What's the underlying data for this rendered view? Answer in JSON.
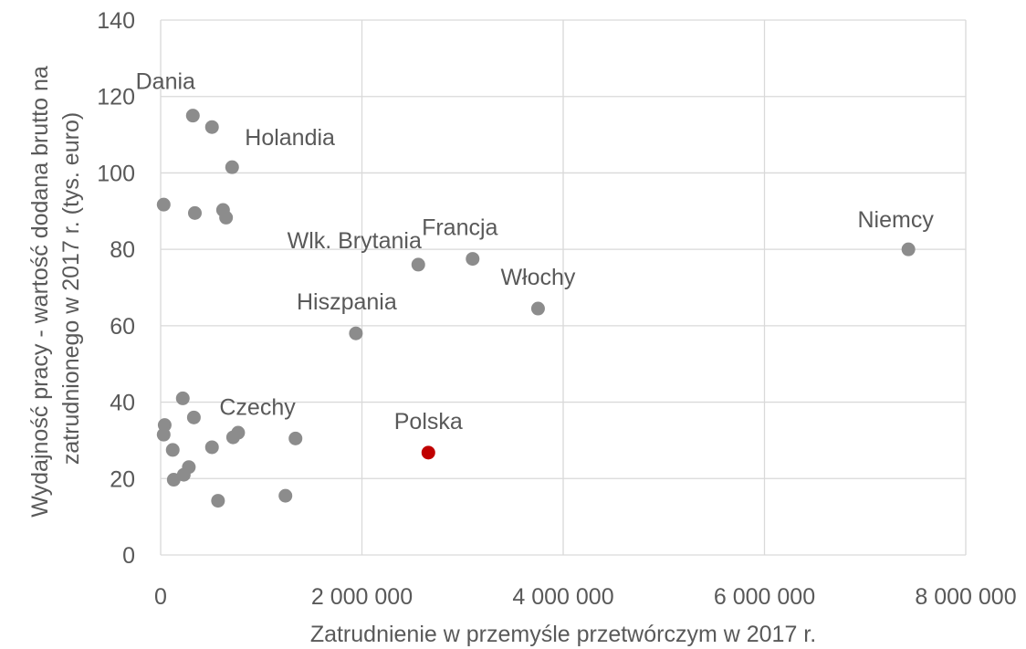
{
  "chart_data": {
    "type": "scatter",
    "title": "",
    "xlabel": "Zatrudnienie w przemyśle przetwórczym w 2017 r.",
    "ylabel_lines": [
      "Wydajność pracy - wartość dodana brutto na",
      "zatrudnionego w 2017 r. (tys. euro)"
    ],
    "xlim": [
      0,
      8000000
    ],
    "ylim": [
      0,
      140
    ],
    "x_ticks": [
      0,
      2000000,
      4000000,
      6000000,
      8000000
    ],
    "x_tick_labels": [
      "0",
      "2 000 000",
      "4 000 000",
      "6 000 000",
      "8 000 000"
    ],
    "y_ticks": [
      0,
      20,
      40,
      60,
      80,
      100,
      120,
      140
    ],
    "y_tick_labels": [
      "0",
      "20",
      "40",
      "60",
      "80",
      "100",
      "120",
      "140"
    ],
    "grid": true,
    "colors": {
      "default": "#8c8c8c",
      "highlight": "#c00000",
      "text": "#595959",
      "grid": "#d9d9d9"
    },
    "points": [
      {
        "x": 320000,
        "y": 115,
        "label": "Dania"
      },
      {
        "x": 510000,
        "y": 112,
        "label": ""
      },
      {
        "x": 710000,
        "y": 101.5,
        "label": "Holandia"
      },
      {
        "x": 30000,
        "y": 91.7,
        "label": ""
      },
      {
        "x": 340000,
        "y": 89.5,
        "label": ""
      },
      {
        "x": 620000,
        "y": 90.3,
        "label": ""
      },
      {
        "x": 650000,
        "y": 88.3,
        "label": ""
      },
      {
        "x": 7430000,
        "y": 80,
        "label": "Niemcy"
      },
      {
        "x": 2560000,
        "y": 76,
        "label": "Wlk. Brytania"
      },
      {
        "x": 3100000,
        "y": 77.5,
        "label": "Francja"
      },
      {
        "x": 3750000,
        "y": 64.5,
        "label": "Włochy"
      },
      {
        "x": 1940000,
        "y": 58,
        "label": "Hiszpania"
      },
      {
        "x": 220000,
        "y": 41,
        "label": ""
      },
      {
        "x": 330000,
        "y": 36,
        "label": ""
      },
      {
        "x": 40000,
        "y": 34,
        "label": ""
      },
      {
        "x": 30000,
        "y": 31.5,
        "label": ""
      },
      {
        "x": 120000,
        "y": 27.5,
        "label": ""
      },
      {
        "x": 510000,
        "y": 28.2,
        "label": ""
      },
      {
        "x": 720000,
        "y": 30.8,
        "label": ""
      },
      {
        "x": 770000,
        "y": 32,
        "label": ""
      },
      {
        "x": 1340000,
        "y": 30.5,
        "label": "Czechy"
      },
      {
        "x": 2660000,
        "y": 26.8,
        "label": "Polska",
        "highlight": true
      },
      {
        "x": 280000,
        "y": 23,
        "label": ""
      },
      {
        "x": 230000,
        "y": 21,
        "label": ""
      },
      {
        "x": 130000,
        "y": 19.7,
        "label": ""
      },
      {
        "x": 570000,
        "y": 14.2,
        "label": ""
      },
      {
        "x": 1240000,
        "y": 15.5,
        "label": ""
      }
    ]
  }
}
